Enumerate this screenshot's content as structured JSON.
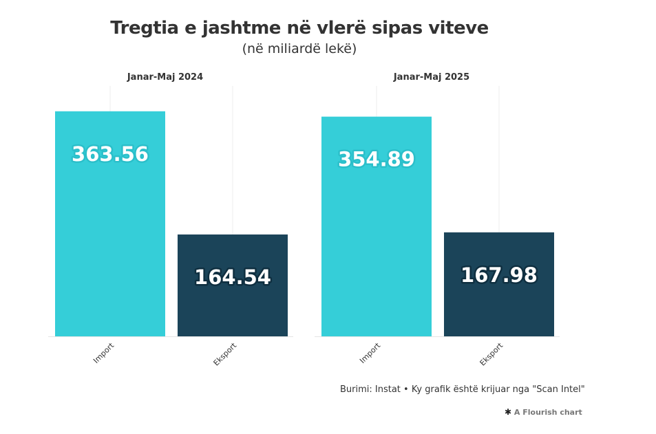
{
  "chart_data": {
    "type": "bar",
    "title": "Tregtia e jashtme në vlerë sipas viteve",
    "subtitle": "(në miliardë lekë)",
    "categories": [
      "Import",
      "Eksport"
    ],
    "ylim": [
      0,
      400
    ],
    "grid": false,
    "panels": [
      {
        "title": "Janar-Maj 2024",
        "values": [
          363.56,
          164.54
        ],
        "labels": [
          "363.56",
          "164.54"
        ]
      },
      {
        "title": "Janar-Maj 2025",
        "values": [
          354.89,
          167.98
        ],
        "labels": [
          "354.89",
          "167.98"
        ]
      }
    ],
    "colors": {
      "Import": "#35ced8",
      "Eksport": "#1b4459"
    },
    "label_outline": {
      "Import": "#2bbfca",
      "Eksport": "#0f2f40"
    }
  },
  "footer": {
    "source": "Burimi: Instat • Ky grafik është krijuar nga \"Scan Intel\"",
    "flourish_star": "✱",
    "flourish": "A Flourish chart"
  }
}
